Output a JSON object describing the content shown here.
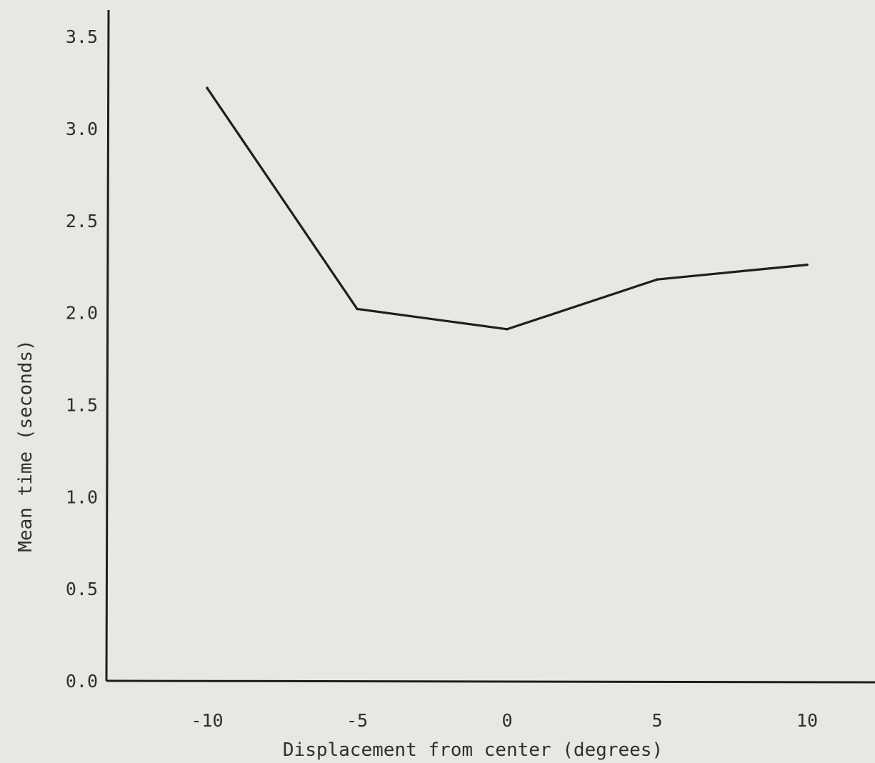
{
  "chart_data": {
    "type": "line",
    "title": "",
    "xlabel": "Displacement from center (degrees)",
    "ylabel": "Mean time (seconds)",
    "x_ticks": [
      "-10",
      "-5",
      "0",
      "5",
      "10"
    ],
    "y_ticks": [
      "0.0",
      "0.5",
      "1.0",
      "1.5",
      "2.0",
      "2.5",
      "3.0",
      "3.5"
    ],
    "xlim": [
      -12,
      12
    ],
    "ylim": [
      0,
      3.6
    ],
    "grid": false,
    "series": [
      {
        "x": [
          -10,
          -5,
          0,
          5,
          10
        ],
        "y": [
          3.22,
          2.02,
          1.91,
          2.18,
          2.26
        ]
      }
    ],
    "colors": {
      "line": "#1e1e1e",
      "axis": "#1e1e1e",
      "paper": "#e7e7e3"
    }
  }
}
